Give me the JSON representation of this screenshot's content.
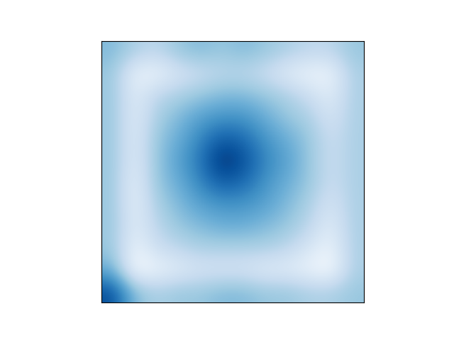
{
  "chart_data": {
    "type": "heatmap",
    "tick_labels": false,
    "cells": [
      [
        0.45,
        0.35,
        0.3,
        0.4,
        0.45,
        0.4,
        0.45,
        0.4,
        0.35,
        0.3,
        0.3,
        0.4
      ],
      [
        0.4,
        0.12,
        0.1,
        0.2,
        0.25,
        0.3,
        0.3,
        0.25,
        0.15,
        0.1,
        0.1,
        0.35
      ],
      [
        0.4,
        0.15,
        0.3,
        0.35,
        0.4,
        0.45,
        0.45,
        0.4,
        0.35,
        0.25,
        0.15,
        0.35
      ],
      [
        0.4,
        0.15,
        0.35,
        0.45,
        0.55,
        0.6,
        0.6,
        0.5,
        0.4,
        0.35,
        0.2,
        0.35
      ],
      [
        0.4,
        0.15,
        0.4,
        0.5,
        0.65,
        0.8,
        0.75,
        0.6,
        0.5,
        0.4,
        0.25,
        0.35
      ],
      [
        0.4,
        0.15,
        0.4,
        0.55,
        0.7,
        0.95,
        0.85,
        0.65,
        0.55,
        0.4,
        0.25,
        0.35
      ],
      [
        0.4,
        0.12,
        0.4,
        0.5,
        0.65,
        0.8,
        0.75,
        0.6,
        0.5,
        0.4,
        0.25,
        0.35
      ],
      [
        0.4,
        0.12,
        0.35,
        0.45,
        0.55,
        0.6,
        0.6,
        0.55,
        0.45,
        0.35,
        0.2,
        0.35
      ],
      [
        0.4,
        0.15,
        0.3,
        0.4,
        0.45,
        0.5,
        0.5,
        0.45,
        0.4,
        0.3,
        0.15,
        0.35
      ],
      [
        0.4,
        0.1,
        0.25,
        0.3,
        0.35,
        0.35,
        0.35,
        0.35,
        0.3,
        0.2,
        0.1,
        0.35
      ],
      [
        0.5,
        0.05,
        0.1,
        0.15,
        0.2,
        0.2,
        0.2,
        0.15,
        0.15,
        0.1,
        0.05,
        0.35
      ],
      [
        0.85,
        0.45,
        0.35,
        0.4,
        0.4,
        0.45,
        0.45,
        0.4,
        0.4,
        0.35,
        0.35,
        0.4
      ]
    ]
  }
}
